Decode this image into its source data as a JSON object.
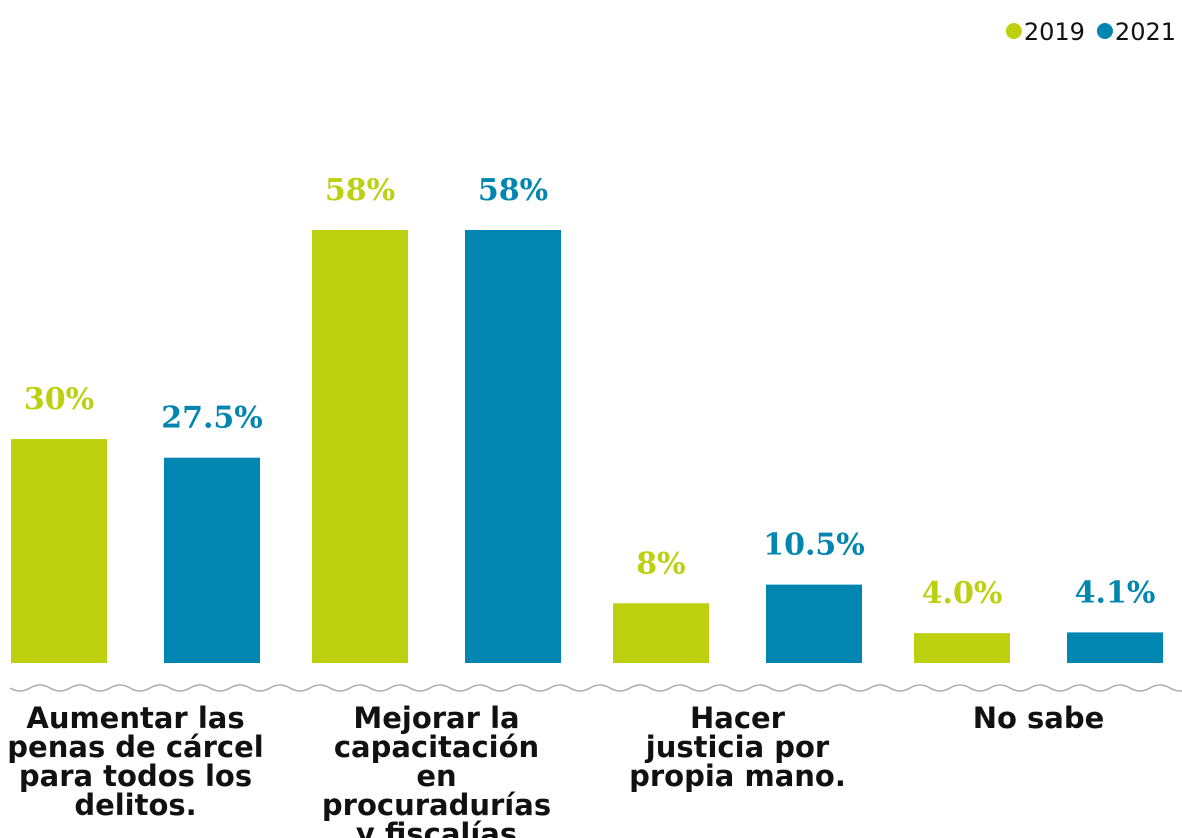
{
  "chart_data": {
    "type": "bar",
    "categories": [
      "Aumentar las penas de cárcel para todos los delitos.",
      "Mejorar la capacitación en procuradurías y fiscalías",
      "Hacer justicia por propia mano.",
      "No sabe"
    ],
    "series": [
      {
        "name": "2019",
        "color": "#bcd00f",
        "values": [
          30,
          58,
          8,
          4.0
        ],
        "value_labels": [
          "30%",
          "58%",
          "8%",
          "4.0%"
        ]
      },
      {
        "name": "2021",
        "color": "#0086b0",
        "values": [
          27.5,
          58,
          10.5,
          4.1
        ],
        "value_labels": [
          "27.5%",
          "58%",
          "10.5%",
          "4.1%"
        ]
      }
    ],
    "legend": "top-right"
  }
}
